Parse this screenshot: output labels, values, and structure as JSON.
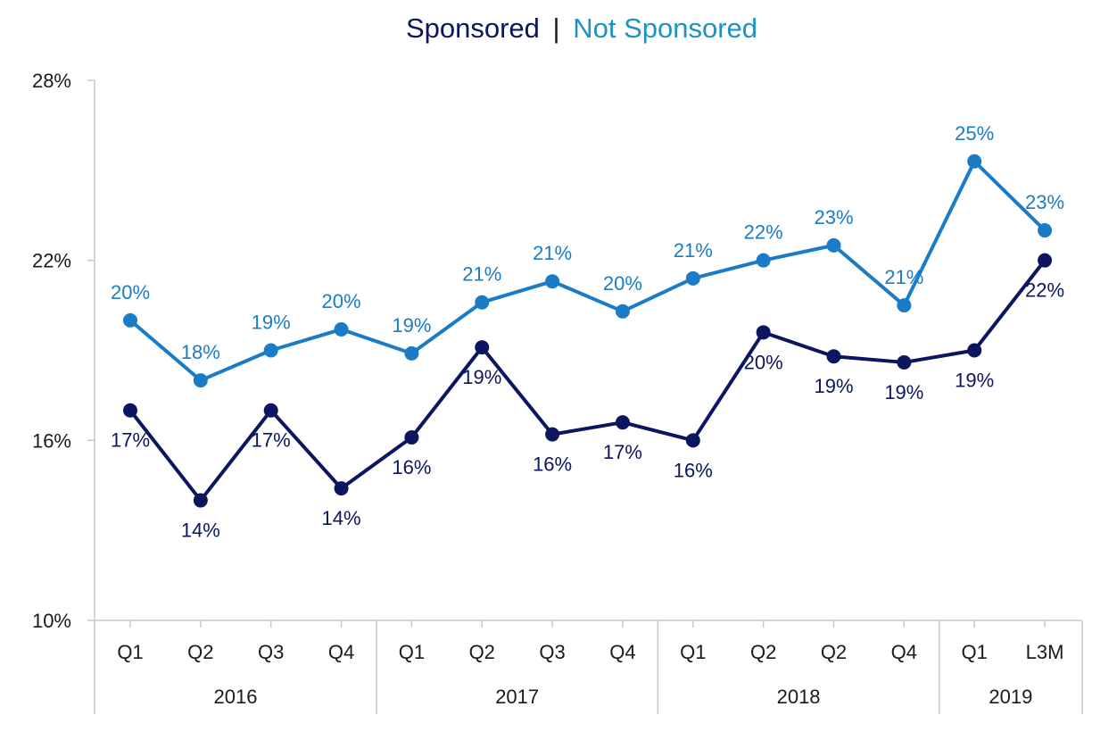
{
  "chart_data": {
    "type": "line",
    "title_parts": [
      "Sponsored",
      "|",
      "Not Sponsored"
    ],
    "colors": {
      "sponsored": "#0b1560",
      "not_sponsored": "#1a7cc6",
      "title_sponsored": "#0b1560",
      "title_sep": "#1a1a1a",
      "title_not_sponsored": "#1c93c2",
      "axis": "#c8c8c8"
    },
    "ylim": [
      10,
      28
    ],
    "yticks": [
      10,
      16,
      22,
      28
    ],
    "ytick_labels": [
      "10%",
      "16%",
      "22%",
      "28%"
    ],
    "categories": [
      "Q1",
      "Q2",
      "Q3",
      "Q4",
      "Q1",
      "Q2",
      "Q3",
      "Q4",
      "Q1",
      "Q2",
      "Q2",
      "Q4",
      "Q1",
      "L3M"
    ],
    "groups": [
      {
        "label": "2016",
        "count": 4
      },
      {
        "label": "2017",
        "count": 4
      },
      {
        "label": "2018",
        "count": 4
      },
      {
        "label": "2019",
        "count": 2
      }
    ],
    "series": [
      {
        "name": "Not Sponsored",
        "values": [
          20.0,
          18.0,
          19.0,
          19.7,
          18.9,
          20.6,
          21.3,
          20.3,
          21.4,
          22.0,
          22.5,
          20.5,
          25.3,
          23.0
        ],
        "labels": [
          "20%",
          "18%",
          "19%",
          "20%",
          "19%",
          "21%",
          "21%",
          "20%",
          "21%",
          "22%",
          "23%",
          "21%",
          "25%",
          "23%"
        ],
        "label_pos": [
          "above",
          "above",
          "above",
          "above",
          "above",
          "above",
          "above",
          "above",
          "above",
          "above",
          "above",
          "above",
          "above",
          "above"
        ]
      },
      {
        "name": "Sponsored",
        "values": [
          17.0,
          14.0,
          17.0,
          14.4,
          16.1,
          19.1,
          16.2,
          16.6,
          16.0,
          19.6,
          18.8,
          18.6,
          19.0,
          22.0
        ],
        "labels": [
          "17%",
          "14%",
          "17%",
          "14%",
          "16%",
          "19%",
          "16%",
          "17%",
          "16%",
          "20%",
          "19%",
          "19%",
          "19%",
          "22%"
        ],
        "label_pos": [
          "below",
          "below",
          "below",
          "below",
          "below",
          "below",
          "below",
          "below",
          "below",
          "below",
          "below",
          "below",
          "below",
          "below"
        ]
      }
    ]
  }
}
